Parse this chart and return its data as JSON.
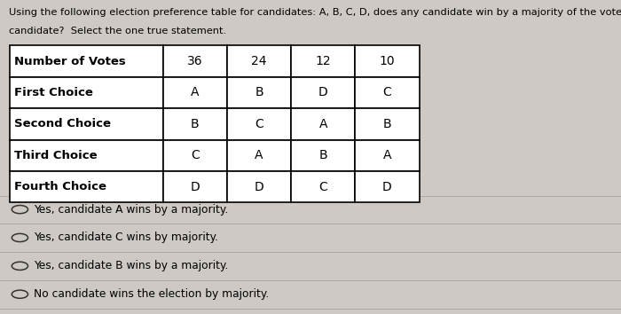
{
  "title_line1": "Using the following election preference table for candidates: A, B, C, D, does any candidate win by a majority of the votes?  If so, which",
  "title_line2": "candidate?  Select the one true statement.",
  "table_headers": [
    "Number of Votes",
    "36",
    "24",
    "12",
    "10"
  ],
  "table_rows": [
    [
      "First Choice",
      "A",
      "B",
      "D",
      "C"
    ],
    [
      "Second Choice",
      "B",
      "C",
      "A",
      "B"
    ],
    [
      "Third Choice",
      "C",
      "A",
      "B",
      "A"
    ],
    [
      "Fourth Choice",
      "D",
      "D",
      "C",
      "D"
    ]
  ],
  "options": [
    "Yes, candidate A wins by a majority.",
    "Yes, candidate C wins by majority.",
    "Yes, candidate B wins by a majority.",
    "No candidate wins the election by majority."
  ],
  "bg_color": "#cec9c4",
  "text_color": "#000000",
  "title_fontsize": 8.2,
  "table_label_fontsize": 9.5,
  "table_data_fontsize": 10,
  "option_fontsize": 8.8
}
